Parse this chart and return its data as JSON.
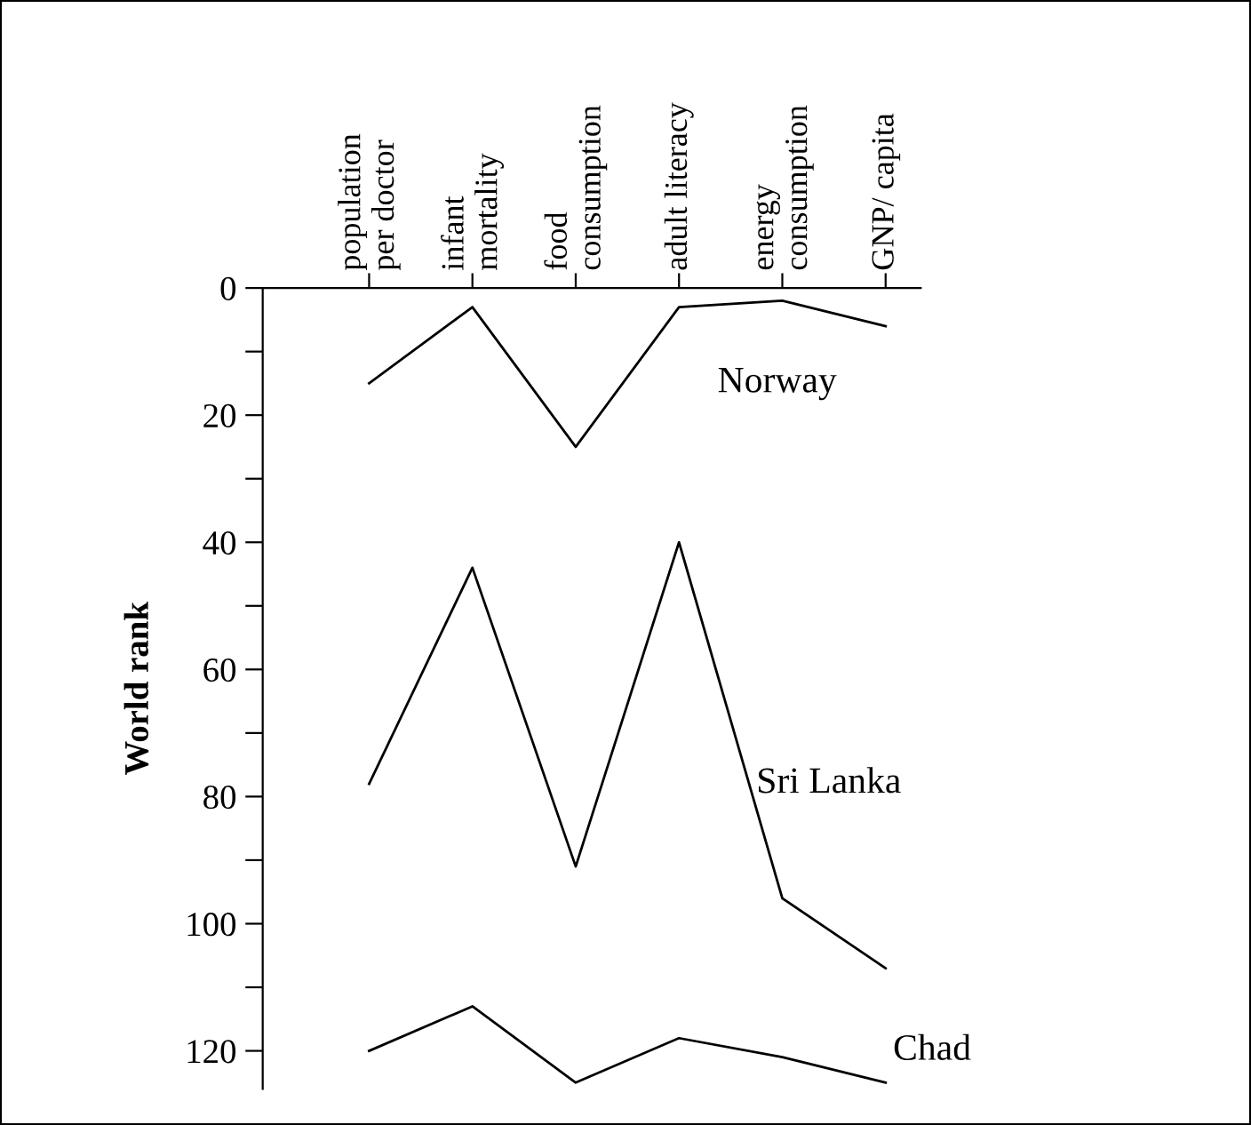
{
  "chart_data": {
    "type": "line",
    "ylabel": "World rank",
    "categories": [
      "population\nper doctor",
      "infant\nmortality",
      "food\nconsumption",
      "adult literacy",
      "energy\nconsumption",
      "GNP/ capita"
    ],
    "series": [
      {
        "name": "Norway",
        "color": "#000000",
        "values": [
          15,
          3,
          25,
          3,
          2,
          6
        ]
      },
      {
        "name": "Sri Lanka",
        "color": "#000000",
        "values": [
          78,
          44,
          91,
          40,
          96,
          107
        ]
      },
      {
        "name": "Chad",
        "color": "#000000",
        "values": [
          120,
          113,
          125,
          118,
          121,
          125
        ]
      }
    ],
    "ylim": [
      126,
      0
    ],
    "yticks": [
      0,
      {
        "value": 10,
        "label": null
      },
      20,
      {
        "value": 30,
        "label": null
      },
      40,
      {
        "value": 50,
        "label": null
      },
      60,
      {
        "value": 70,
        "label": null
      },
      80,
      {
        "value": 90,
        "label": null
      },
      100,
      {
        "value": 110,
        "label": null
      },
      120
    ],
    "grid": false,
    "legend": false,
    "marker": "none",
    "line_style": "solid"
  }
}
